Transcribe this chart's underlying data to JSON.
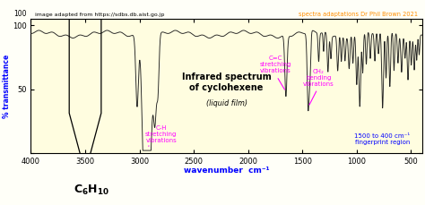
{
  "title": "Infrared spectrum\nof cyclohexene",
  "subtitle": "(liquid film)",
  "xlabel": "wavenumber  cm⁻¹",
  "ylabel": "% transmittance",
  "xlim": [
    4000,
    400
  ],
  "ylim": [
    0,
    105
  ],
  "background_color": "#fffff8",
  "plot_bg_color": "#fffff0",
  "top_label": "image adapted from https://sdbs.db.aist.go.jp",
  "top_right_label": "spectra adaptations Dr Phil Brown 2021",
  "fingerprint_label": "1500 to 400 cm⁻¹\nfingerprint region",
  "xticks": [
    4000,
    3500,
    3000,
    2500,
    2000,
    1500,
    1000,
    500
  ],
  "spectrum_color": "#222222",
  "fingerprint_x_start": 1500,
  "fingerprint_x_end": 400,
  "hex_label": "C",
  "hex_sub6": "6",
  "hex_h": "H",
  "hex_sub10": "10"
}
